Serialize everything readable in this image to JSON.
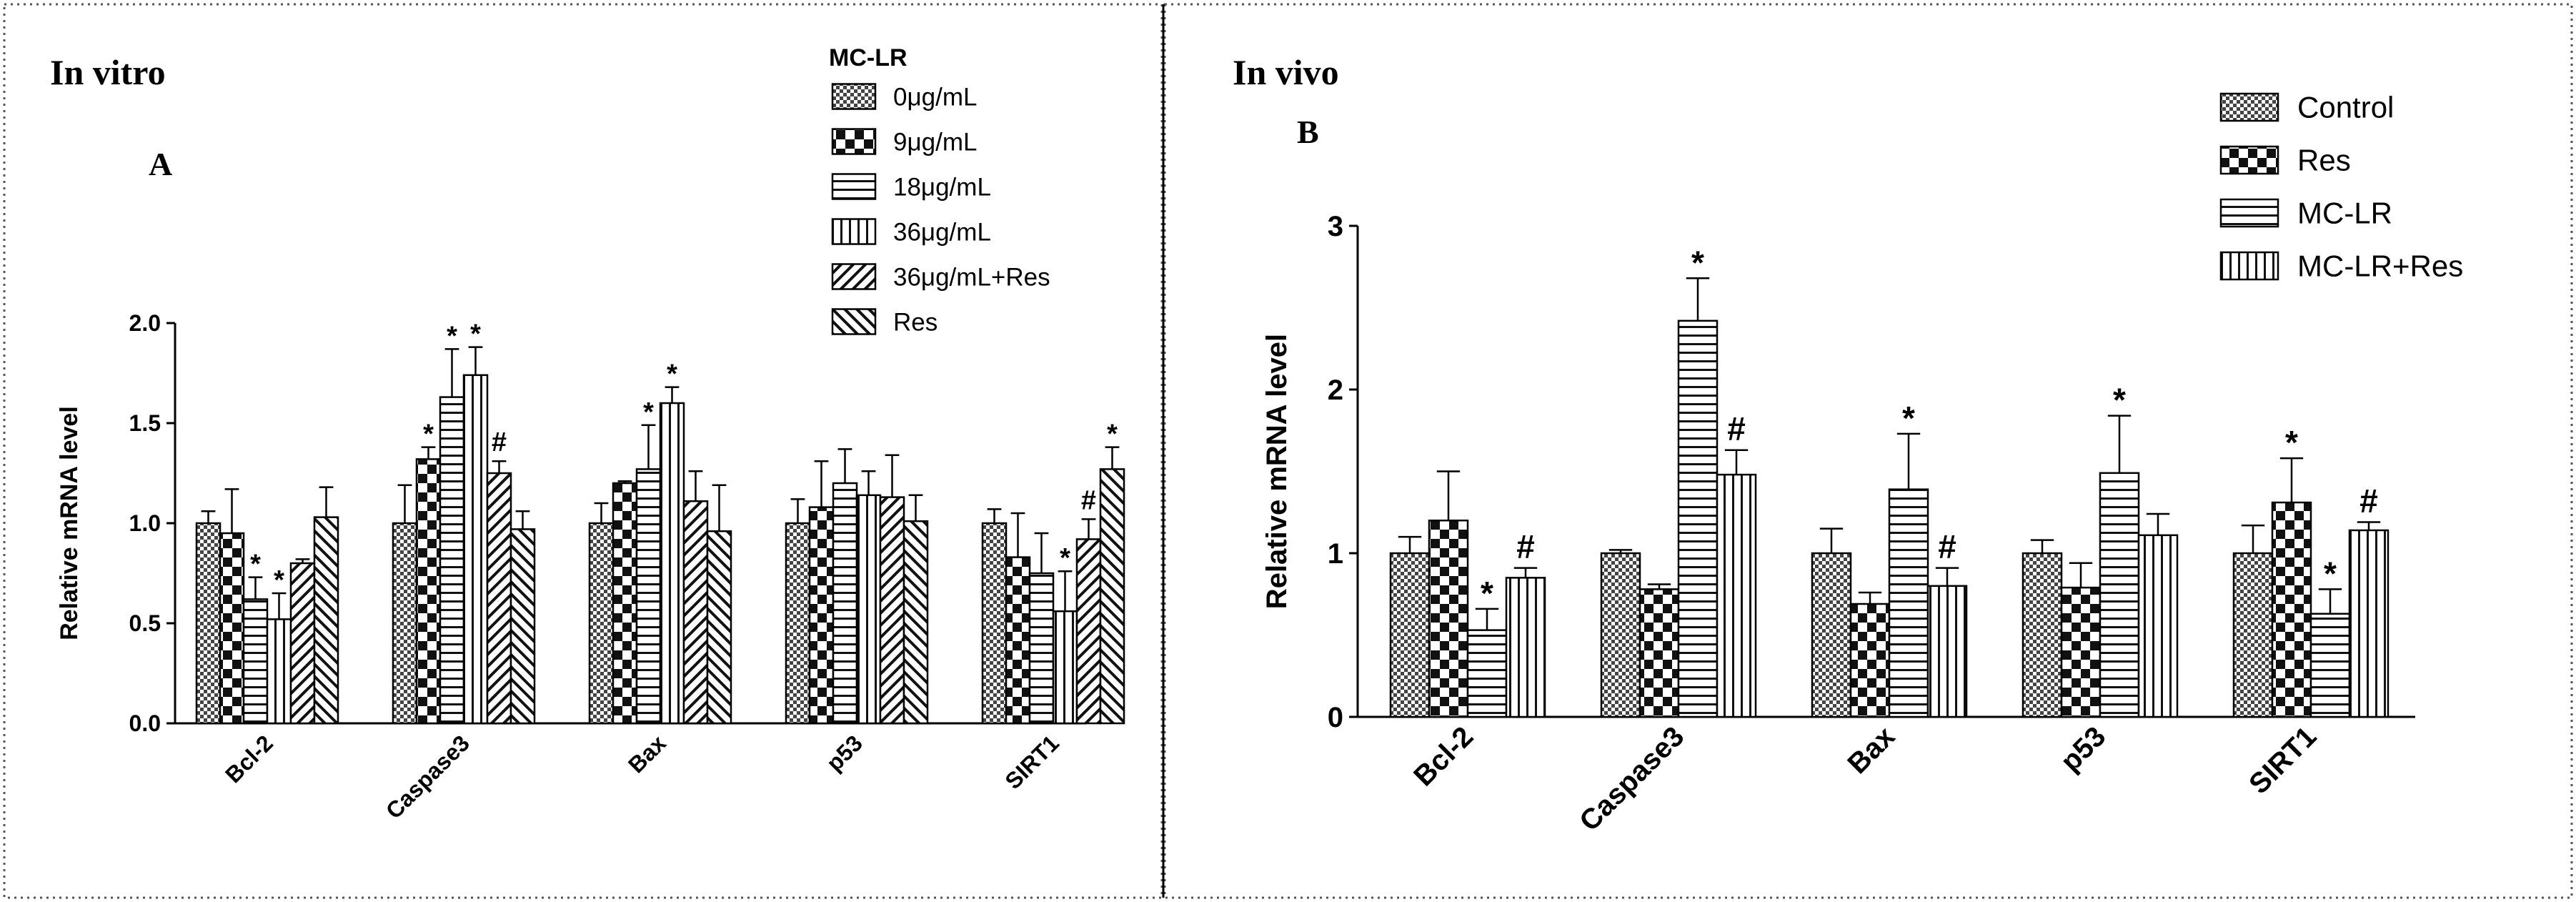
{
  "chart_data": [
    {
      "type": "bar",
      "heading": "In vitro",
      "panel_label": "A",
      "ylabel": "Relative mRNA level",
      "ylim": [
        0,
        2.0
      ],
      "yticks": [
        "0.0",
        "0.5",
        "1.0",
        "1.5",
        "2.0"
      ],
      "categories": [
        "Bcl-2",
        "Caspase3",
        "Bax",
        "p53",
        "SIRT1"
      ],
      "legend_title": "MC-LR",
      "legend_position": "top-right",
      "series": [
        {
          "name": "0μg/mL",
          "pattern": "dense-dots",
          "values": [
            1.0,
            1.0,
            1.0,
            1.0,
            1.0
          ],
          "errors": [
            0.06,
            0.19,
            0.1,
            0.12,
            0.07
          ],
          "marks": [
            "",
            "",
            "",
            "",
            ""
          ]
        },
        {
          "name": "9μg/mL",
          "pattern": "checker",
          "values": [
            0.95,
            1.32,
            1.2,
            1.08,
            0.83
          ],
          "errors": [
            0.22,
            0.06,
            0.01,
            0.23,
            0.22
          ],
          "marks": [
            "",
            "*",
            "",
            "",
            ""
          ]
        },
        {
          "name": "18μg/mL",
          "pattern": "horizontal",
          "values": [
            0.62,
            1.63,
            1.27,
            1.2,
            0.75
          ],
          "errors": [
            0.11,
            0.24,
            0.22,
            0.17,
            0.2
          ],
          "marks": [
            "*",
            "*",
            "*",
            "",
            ""
          ]
        },
        {
          "name": "36μg/mL",
          "pattern": "vertical",
          "values": [
            0.52,
            1.74,
            1.6,
            1.14,
            0.56
          ],
          "errors": [
            0.13,
            0.14,
            0.08,
            0.12,
            0.2
          ],
          "marks": [
            "*",
            "*",
            "*",
            "",
            "*"
          ]
        },
        {
          "name": "36μg/mL+Res",
          "pattern": "diag-up",
          "values": [
            0.8,
            1.25,
            1.11,
            1.13,
            0.92
          ],
          "errors": [
            0.02,
            0.06,
            0.15,
            0.21,
            0.1
          ],
          "marks": [
            "",
            "#",
            "",
            "",
            "#"
          ]
        },
        {
          "name": "Res",
          "pattern": "diag-down",
          "values": [
            1.03,
            0.97,
            0.96,
            1.01,
            1.27
          ],
          "errors": [
            0.15,
            0.09,
            0.23,
            0.13,
            0.11
          ],
          "marks": [
            "",
            "",
            "",
            "",
            "*"
          ]
        }
      ]
    },
    {
      "type": "bar",
      "heading": "In vivo",
      "panel_label": "B",
      "ylabel": "Relative mRNA level",
      "ylim": [
        0,
        3
      ],
      "yticks": [
        "0",
        "1",
        "2",
        "3"
      ],
      "categories": [
        "Bcl-2",
        "Caspase3",
        "Bax",
        "p53",
        "SIRT1"
      ],
      "legend_title": "",
      "legend_position": "top-right",
      "series": [
        {
          "name": "Control",
          "pattern": "dense-dots",
          "values": [
            1.0,
            1.0,
            1.0,
            1.0,
            1.0
          ],
          "errors": [
            0.1,
            0.02,
            0.15,
            0.08,
            0.17
          ],
          "marks": [
            "",
            "",
            "",
            "",
            ""
          ]
        },
        {
          "name": "Res",
          "pattern": "checker",
          "values": [
            1.2,
            0.78,
            0.69,
            0.79,
            1.31
          ],
          "errors": [
            0.3,
            0.03,
            0.07,
            0.15,
            0.27
          ],
          "marks": [
            "",
            "",
            "",
            "",
            "*"
          ]
        },
        {
          "name": "MC-LR",
          "pattern": "horizontal",
          "values": [
            0.53,
            2.42,
            1.39,
            1.49,
            0.63
          ],
          "errors": [
            0.13,
            0.26,
            0.34,
            0.35,
            0.15
          ],
          "marks": [
            "*",
            "*",
            "*",
            "*",
            "*"
          ]
        },
        {
          "name": "MC-LR+Res",
          "pattern": "vertical",
          "values": [
            0.85,
            1.48,
            0.8,
            1.11,
            1.14
          ],
          "errors": [
            0.06,
            0.15,
            0.11,
            0.13,
            0.05
          ],
          "marks": [
            "#",
            "#",
            "#",
            "",
            "#"
          ]
        }
      ]
    }
  ]
}
